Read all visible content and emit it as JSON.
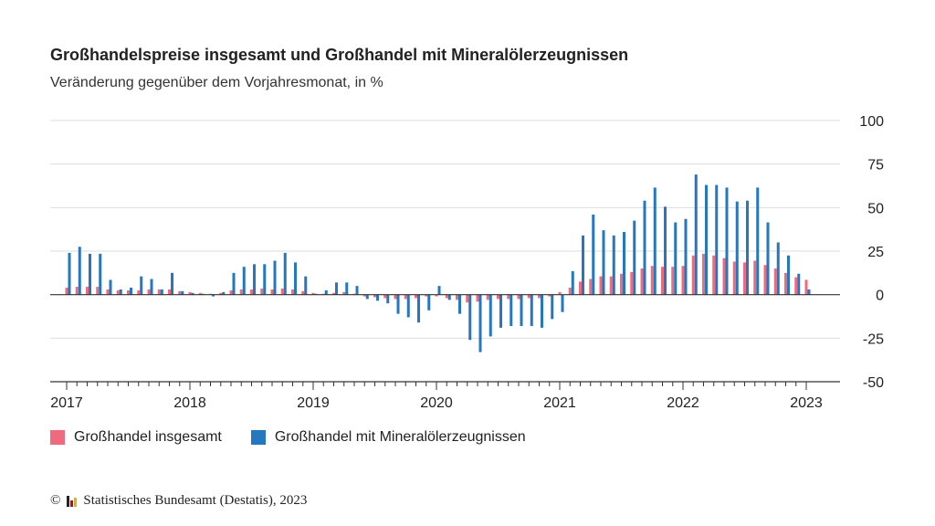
{
  "chart_data": {
    "type": "bar",
    "title": "Großhandelspreise insgesamt und Großhandel mit Mineralölerzeugnissen",
    "subtitle": "Veränderung gegenüber dem Vorjahresmonat, in %",
    "ylim": [
      -50,
      100
    ],
    "yticks": [
      100,
      75,
      50,
      25,
      0,
      -25,
      -50
    ],
    "xtick_labels": [
      "2017",
      "2018",
      "2019",
      "2020",
      "2021",
      "2022",
      "2023"
    ],
    "start": "2017-01",
    "grid": true,
    "legend_position": "bottom-left",
    "series": [
      {
        "name": "Großhandel insgesamt",
        "color": "#f06a7d",
        "values": [
          4,
          4.5,
          4.5,
          4.5,
          3,
          2.5,
          2.5,
          2.5,
          3,
          3,
          3,
          2,
          1.5,
          1,
          0.5,
          1,
          2.5,
          3,
          3,
          3.5,
          3,
          3.5,
          3,
          2,
          1,
          0.5,
          1,
          1.5,
          0.5,
          -1,
          -1.5,
          -2,
          -2.5,
          -2.5,
          -2,
          -1,
          -1,
          -2,
          -3,
          -4.5,
          -4,
          -3,
          -2.5,
          -2.5,
          -2.5,
          -2,
          -2,
          -1,
          1.5,
          4,
          7.5,
          9,
          10.5,
          10.5,
          12,
          13,
          15,
          16.5,
          16,
          16,
          16.5,
          22.5,
          23.5,
          22.5,
          21,
          19,
          18.5,
          19.5,
          17,
          15,
          12.5,
          10,
          8.5
        ]
      },
      {
        "name": "Großhandel mit Mineralölerzeugnissen",
        "color": "#2577c0",
        "values": [
          24,
          27.5,
          23.5,
          23.5,
          8.5,
          3,
          4,
          10.5,
          9,
          3,
          12.5,
          2,
          1,
          0.5,
          -1,
          1.5,
          12.5,
          16,
          17.5,
          17.5,
          19.5,
          24,
          18.5,
          10.5,
          0.5,
          2.5,
          7,
          7,
          5,
          -2.5,
          -3.5,
          -5,
          -11,
          -13,
          -16,
          -9,
          5,
          -3,
          -11,
          -26,
          -33,
          -24,
          -19,
          -18,
          -18,
          -18,
          -19,
          -14,
          -10,
          13.5,
          34,
          46,
          37,
          34,
          36,
          42.5,
          54,
          61.5,
          50.5,
          41.5,
          43.5,
          69,
          63,
          63,
          61.5,
          53.5,
          54,
          61.5,
          41.5,
          30,
          22.5,
          12,
          3
        ]
      }
    ]
  },
  "legend": {
    "item1": "Großhandel insgesamt",
    "item2": "Großhandel mit Mineralölerzeugnissen",
    "color1": "#f06a7d",
    "color2": "#2577c0"
  },
  "source": {
    "copyright": "©",
    "text": "Statistisches Bundesamt (Destatis), 2023"
  }
}
